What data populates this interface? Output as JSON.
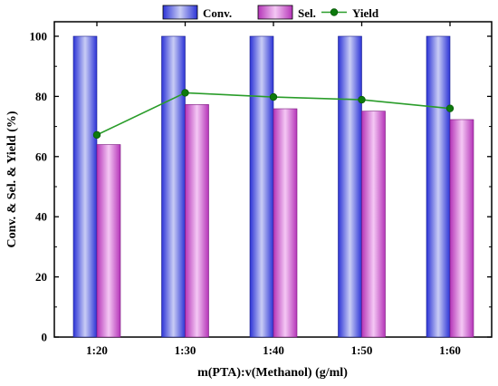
{
  "chart_data": {
    "type": "bar",
    "categories": [
      "1:20",
      "1:30",
      "1:40",
      "1:50",
      "1:60"
    ],
    "series": [
      {
        "name": "Conv.",
        "type": "bar",
        "values": [
          100,
          100,
          100,
          100,
          100
        ]
      },
      {
        "name": "Sel.",
        "type": "bar",
        "values": [
          64.0,
          77.3,
          75.9,
          75.1,
          72.3
        ]
      },
      {
        "name": "Yield",
        "type": "line",
        "values": [
          67.2,
          81.2,
          79.8,
          78.9,
          76.0
        ]
      }
    ],
    "title": "",
    "xlabel": "m(PTA):v(Methanol) (g/ml)",
    "ylabel": "Conv. & Sel. & Yield (%)",
    "ylim": [
      0,
      100
    ],
    "yticks": [
      "0",
      "20",
      "40",
      "60",
      "80",
      "100"
    ],
    "grid": false,
    "legend_position": "top",
    "colors": {
      "conv_light": "#c9cdf5",
      "conv_dark": "#2c33d6",
      "sel_light": "#f4c8f4",
      "sel_dark": "#b534b8",
      "yield_line": "#2a9d2a",
      "yield_marker": "#0d7a0d"
    }
  }
}
